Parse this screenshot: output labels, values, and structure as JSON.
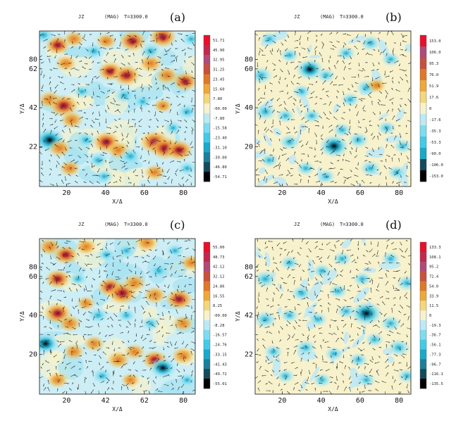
{
  "chart_data": [
    {
      "type": "heatmap",
      "panel_label": "(a)",
      "title_var": "JZ",
      "title_mag": "(MAG)",
      "title_time": "T=3300.0",
      "xlabel": "X/Δ",
      "ylabel": "Y/Δ",
      "xticks": [
        "20",
        "40",
        "60",
        "80"
      ],
      "yticks": [
        "22",
        "42",
        "62",
        "80"
      ],
      "xlim": [
        5,
        82
      ],
      "ylim": [
        5,
        82
      ],
      "colorbar_labels": [
        "51.71",
        "45.90",
        "32.95",
        "31.25",
        "23.45",
        "15.60",
        "7.80",
        "-00.00",
        "-7.80",
        "-15.58",
        "-23.40",
        "-31.10",
        "-39.00",
        "-46.80",
        "-54.71"
      ],
      "blobs": [
        {
          "x": 14,
          "y": 75,
          "v": 0.7
        },
        {
          "x": 22,
          "y": 78,
          "v": 0.5
        },
        {
          "x": 38,
          "y": 77,
          "v": 0.5
        },
        {
          "x": 51,
          "y": 77,
          "v": 0.8
        },
        {
          "x": 66,
          "y": 79,
          "v": 0.8
        },
        {
          "x": 80,
          "y": 78,
          "v": -0.4
        },
        {
          "x": 18,
          "y": 66,
          "v": 0.5
        },
        {
          "x": 40,
          "y": 62,
          "v": 0.7
        },
        {
          "x": 48,
          "y": 60,
          "v": 0.8
        },
        {
          "x": 60,
          "y": 66,
          "v": 0.6
        },
        {
          "x": 68,
          "y": 60,
          "v": 0.6
        },
        {
          "x": 77,
          "y": 57,
          "v": 0.7
        },
        {
          "x": 32,
          "y": 72,
          "v": -0.5
        },
        {
          "x": 60,
          "y": 72,
          "v": -0.6
        },
        {
          "x": 26,
          "y": 52,
          "v": -0.4
        },
        {
          "x": 10,
          "y": 48,
          "v": 0.6
        },
        {
          "x": 17,
          "y": 45,
          "v": 0.9
        },
        {
          "x": 21,
          "y": 38,
          "v": 0.6
        },
        {
          "x": 47,
          "y": 50,
          "v": -0.5
        },
        {
          "x": 56,
          "y": 47,
          "v": -0.4
        },
        {
          "x": 66,
          "y": 45,
          "v": 0.4
        },
        {
          "x": 78,
          "y": 42,
          "v": -0.5
        },
        {
          "x": 10,
          "y": 28,
          "v": -1.0
        },
        {
          "x": 15,
          "y": 24,
          "v": 0.6
        },
        {
          "x": 28,
          "y": 28,
          "v": -0.5
        },
        {
          "x": 38,
          "y": 27,
          "v": 0.8
        },
        {
          "x": 44,
          "y": 23,
          "v": 0.6
        },
        {
          "x": 50,
          "y": 20,
          "v": -0.6
        },
        {
          "x": 62,
          "y": 27,
          "v": 0.9
        },
        {
          "x": 67,
          "y": 24,
          "v": 0.9
        },
        {
          "x": 74,
          "y": 23,
          "v": 0.8
        },
        {
          "x": 71,
          "y": 34,
          "v": -0.4
        },
        {
          "x": 34,
          "y": 18,
          "v": -0.5
        },
        {
          "x": 20,
          "y": 14,
          "v": 0.5
        },
        {
          "x": 62,
          "y": 12,
          "v": 0.5
        },
        {
          "x": 78,
          "y": 14,
          "v": -0.4
        },
        {
          "x": 37,
          "y": 10,
          "v": -0.4
        },
        {
          "x": 7,
          "y": 80,
          "v": -0.6
        }
      ]
    },
    {
      "type": "heatmap",
      "panel_label": "(b)",
      "title_var": "JZ",
      "title_mag": "(MAG)",
      "title_time": "T=3300.0",
      "xlabel": "X/Δ",
      "ylabel": "Y/Δ",
      "xticks": [
        "20",
        "40",
        "60",
        "80"
      ],
      "yticks": [
        "20",
        "40",
        "60",
        "80"
      ],
      "xlim": [
        5,
        82
      ],
      "ylim": [
        5,
        82
      ],
      "colorbar_labels": [
        "153.0",
        "106.0",
        "95.3",
        "76.0",
        "51.9",
        "17.6",
        "0",
        "-17.6",
        "-35.3",
        "-53.3",
        "-90.0",
        "-106.0",
        "-153.0"
      ],
      "blobs": [
        {
          "x": 8,
          "y": 60,
          "v": -0.6
        },
        {
          "x": 12,
          "y": 78,
          "v": -0.4
        },
        {
          "x": 22,
          "y": 70,
          "v": -0.4
        },
        {
          "x": 32,
          "y": 63,
          "v": -0.8
        },
        {
          "x": 40,
          "y": 60,
          "v": -0.4
        },
        {
          "x": 50,
          "y": 71,
          "v": -0.4
        },
        {
          "x": 62,
          "y": 76,
          "v": -0.5
        },
        {
          "x": 72,
          "y": 68,
          "v": -0.4
        },
        {
          "x": 60,
          "y": 54,
          "v": -0.5
        },
        {
          "x": 52,
          "y": 48,
          "v": -0.4
        },
        {
          "x": 28,
          "y": 52,
          "v": -0.4
        },
        {
          "x": 10,
          "y": 42,
          "v": -0.6
        },
        {
          "x": 20,
          "y": 40,
          "v": -0.4
        },
        {
          "x": 33,
          "y": 40,
          "v": -0.4
        },
        {
          "x": 48,
          "y": 33,
          "v": -0.4
        },
        {
          "x": 44,
          "y": 25,
          "v": -0.9
        },
        {
          "x": 56,
          "y": 28,
          "v": -0.5
        },
        {
          "x": 70,
          "y": 34,
          "v": -0.4
        },
        {
          "x": 78,
          "y": 25,
          "v": -0.4
        },
        {
          "x": 22,
          "y": 27,
          "v": -0.5
        },
        {
          "x": 12,
          "y": 18,
          "v": -0.4
        },
        {
          "x": 30,
          "y": 14,
          "v": -0.4
        },
        {
          "x": 62,
          "y": 14,
          "v": -0.5
        },
        {
          "x": 75,
          "y": 12,
          "v": -0.4
        },
        {
          "x": 40,
          "y": 10,
          "v": -0.4
        },
        {
          "x": 65,
          "y": 55,
          "v": 0.4
        }
      ]
    },
    {
      "type": "heatmap",
      "panel_label": "(c)",
      "title_var": "JZ",
      "title_mag": "(MAG)",
      "title_time": "T=3300.0",
      "xlabel": "X/Δ",
      "ylabel": "Y/Δ",
      "xticks": [
        "20",
        "42",
        "62",
        "80"
      ],
      "yticks": [
        "20",
        "40",
        "60",
        "80"
      ],
      "xlim": [
        5,
        82
      ],
      "ylim": [
        5,
        82
      ],
      "colorbar_labels": [
        "55.00",
        "48.73",
        "42.12",
        "32.12",
        "24.86",
        "16.55",
        "8.25",
        "-00.00",
        "-8.28",
        "-16.57",
        "-24.76",
        "-33.15",
        "-41.43",
        "-49.72",
        "-55.01"
      ],
      "blobs": [
        {
          "x": 10,
          "y": 78,
          "v": 0.6
        },
        {
          "x": 18,
          "y": 74,
          "v": 0.7
        },
        {
          "x": 28,
          "y": 78,
          "v": 0.5
        },
        {
          "x": 38,
          "y": 74,
          "v": -0.4
        },
        {
          "x": 48,
          "y": 76,
          "v": -0.4
        },
        {
          "x": 58,
          "y": 80,
          "v": 0.6
        },
        {
          "x": 72,
          "y": 76,
          "v": -0.4
        },
        {
          "x": 80,
          "y": 70,
          "v": 0.5
        },
        {
          "x": 14,
          "y": 62,
          "v": 0.7
        },
        {
          "x": 24,
          "y": 62,
          "v": -0.4
        },
        {
          "x": 40,
          "y": 58,
          "v": 0.7
        },
        {
          "x": 46,
          "y": 55,
          "v": 0.9
        },
        {
          "x": 52,
          "y": 60,
          "v": 0.6
        },
        {
          "x": 62,
          "y": 54,
          "v": 0.6
        },
        {
          "x": 74,
          "y": 52,
          "v": 0.8
        },
        {
          "x": 64,
          "y": 66,
          "v": -0.5
        },
        {
          "x": 14,
          "y": 45,
          "v": 0.8
        },
        {
          "x": 20,
          "y": 40,
          "v": 0.6
        },
        {
          "x": 34,
          "y": 44,
          "v": -0.5
        },
        {
          "x": 48,
          "y": 44,
          "v": -0.4
        },
        {
          "x": 60,
          "y": 40,
          "v": -0.4
        },
        {
          "x": 76,
          "y": 40,
          "v": 0.5
        },
        {
          "x": 8,
          "y": 30,
          "v": -0.8
        },
        {
          "x": 22,
          "y": 26,
          "v": 0.5
        },
        {
          "x": 32,
          "y": 30,
          "v": 0.5
        },
        {
          "x": 44,
          "y": 22,
          "v": 0.6
        },
        {
          "x": 52,
          "y": 26,
          "v": 0.5
        },
        {
          "x": 62,
          "y": 22,
          "v": 0.7
        },
        {
          "x": 66,
          "y": 18,
          "v": -0.8
        },
        {
          "x": 76,
          "y": 24,
          "v": 0.6
        },
        {
          "x": 36,
          "y": 14,
          "v": -0.5
        },
        {
          "x": 50,
          "y": 12,
          "v": 0.4
        },
        {
          "x": 14,
          "y": 12,
          "v": 0.5
        },
        {
          "x": 78,
          "y": 12,
          "v": -0.4
        },
        {
          "x": 28,
          "y": 50,
          "v": 0.4
        }
      ]
    },
    {
      "type": "heatmap",
      "panel_label": "(d)",
      "title_var": "JZ",
      "title_mag": "(MAG)",
      "title_time": "T=3300.0",
      "xlabel": "X/Δ",
      "ylabel": "Y/Δ",
      "xticks": [
        "20",
        "40",
        "60",
        "80"
      ],
      "yticks": [
        "22",
        "42",
        "62",
        "80"
      ],
      "xlim": [
        5,
        82
      ],
      "ylim": [
        5,
        82
      ],
      "colorbar_labels": [
        "133.3",
        "108.1",
        "95.2",
        "72.4",
        "54.0",
        "33.9",
        "11.5",
        "0",
        "-19.3",
        "-36.7",
        "-56.1",
        "-77.3",
        "-96.7",
        "-116.1",
        "-135.5"
      ],
      "blobs": [
        {
          "x": 10,
          "y": 62,
          "v": -0.6
        },
        {
          "x": 22,
          "y": 70,
          "v": -0.4
        },
        {
          "x": 28,
          "y": 55,
          "v": -0.5
        },
        {
          "x": 38,
          "y": 66,
          "v": -0.4
        },
        {
          "x": 48,
          "y": 72,
          "v": -0.4
        },
        {
          "x": 58,
          "y": 62,
          "v": -0.4
        },
        {
          "x": 72,
          "y": 72,
          "v": -0.4
        },
        {
          "x": 80,
          "y": 60,
          "v": -0.5
        },
        {
          "x": 10,
          "y": 42,
          "v": -0.6
        },
        {
          "x": 22,
          "y": 44,
          "v": -0.4
        },
        {
          "x": 36,
          "y": 42,
          "v": -0.4
        },
        {
          "x": 50,
          "y": 46,
          "v": -0.4
        },
        {
          "x": 60,
          "y": 45,
          "v": -1.0
        },
        {
          "x": 72,
          "y": 40,
          "v": -0.5
        },
        {
          "x": 14,
          "y": 26,
          "v": -0.4
        },
        {
          "x": 30,
          "y": 28,
          "v": -0.5
        },
        {
          "x": 44,
          "y": 25,
          "v": -0.4
        },
        {
          "x": 56,
          "y": 22,
          "v": -0.4
        },
        {
          "x": 76,
          "y": 28,
          "v": -0.6
        },
        {
          "x": 64,
          "y": 32,
          "v": -0.4
        },
        {
          "x": 20,
          "y": 14,
          "v": -0.4
        },
        {
          "x": 38,
          "y": 12,
          "v": -0.4
        },
        {
          "x": 60,
          "y": 12,
          "v": -0.4
        },
        {
          "x": 80,
          "y": 14,
          "v": -0.4
        },
        {
          "x": 46,
          "y": 56,
          "v": -0.4
        }
      ]
    }
  ]
}
